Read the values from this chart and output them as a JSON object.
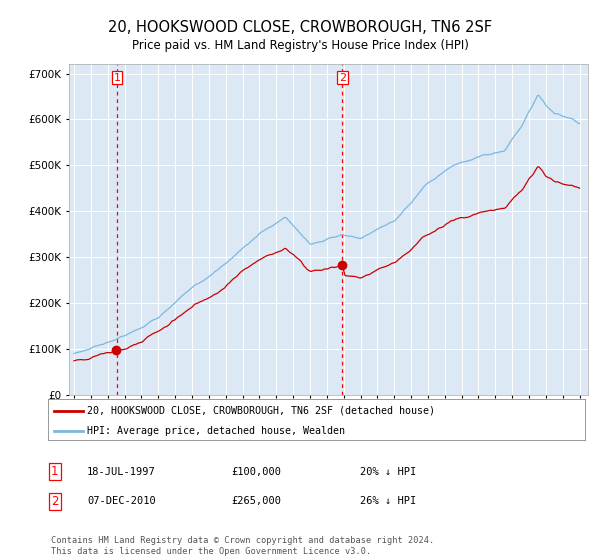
{
  "title": "20, HOOKSWOOD CLOSE, CROWBOROUGH, TN6 2SF",
  "subtitle": "Price paid vs. HM Land Registry's House Price Index (HPI)",
  "background_color": "#dce9f5",
  "plot_bg_color": "#dce9f5",
  "hpi_color": "#7ab8e0",
  "price_color": "#cc0000",
  "sale1_date": 1997.54,
  "sale1_price": 100000,
  "sale2_date": 2010.93,
  "sale2_price": 265000,
  "ylim_min": 0,
  "ylim_max": 720000,
  "yticks": [
    0,
    100000,
    200000,
    300000,
    400000,
    500000,
    600000,
    700000
  ],
  "legend_line1": "20, HOOKSWOOD CLOSE, CROWBOROUGH, TN6 2SF (detached house)",
  "legend_line2": "HPI: Average price, detached house, Wealden",
  "note1_date": "18-JUL-1997",
  "note1_price": "£100,000",
  "note1_hpi": "20% ↓ HPI",
  "note2_date": "07-DEC-2010",
  "note2_price": "£265,000",
  "note2_hpi": "26% ↓ HPI",
  "footer": "Contains HM Land Registry data © Crown copyright and database right 2024.\nThis data is licensed under the Open Government Licence v3.0."
}
